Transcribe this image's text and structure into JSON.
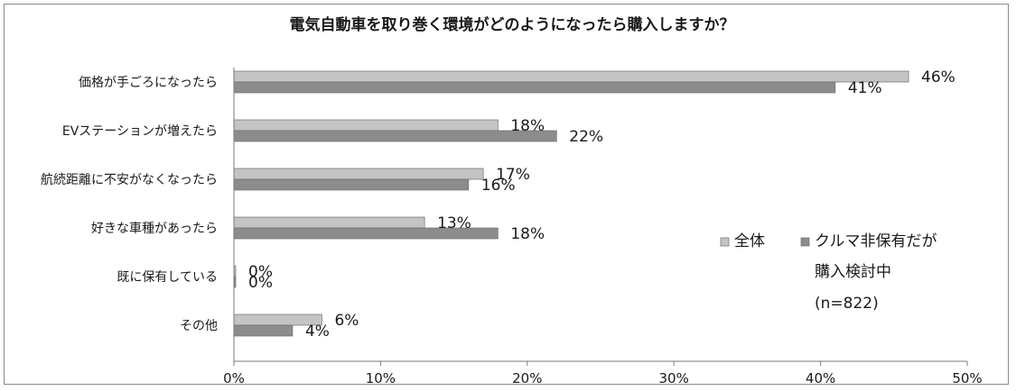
{
  "chart_data": {
    "type": "bar",
    "orientation": "horizontal",
    "title": "電気自動車を取り巻く環境がどのようになったら購入しますか？",
    "categories": [
      "価格が手ごろになったら",
      "EVステーションが増えたら",
      "航続距離に不安がなくなったら",
      "好きな車種があったら",
      "既に保有している",
      "その他"
    ],
    "series": [
      {
        "name": "全体",
        "values": [
          46,
          18,
          17,
          13,
          0,
          6
        ],
        "color": "#c4c4c4"
      },
      {
        "name": "クルマ非保有だが購入検討中",
        "values": [
          41,
          22,
          16,
          18,
          0,
          4
        ],
        "color": "#8c8c8c"
      }
    ],
    "value_labels": [
      [
        "46%",
        "18%",
        "17%",
        "13%",
        "0%",
        "6%"
      ],
      [
        "41%",
        "22%",
        "16%",
        "18%",
        "0%",
        "4%"
      ]
    ],
    "legend": {
      "items": [
        {
          "label": "全体",
          "color": "#c4c4c4"
        },
        {
          "label": "クルマ非保有だが",
          "color": "#8c8c8c"
        }
      ],
      "note_lines": [
        "購入検討中",
        "(n=822)"
      ],
      "placement": "right"
    },
    "x_ticks": [
      "0%",
      "10%",
      "20%",
      "30%",
      "40%",
      "50%"
    ],
    "xlim": [
      0,
      50
    ],
    "grid": false
  }
}
